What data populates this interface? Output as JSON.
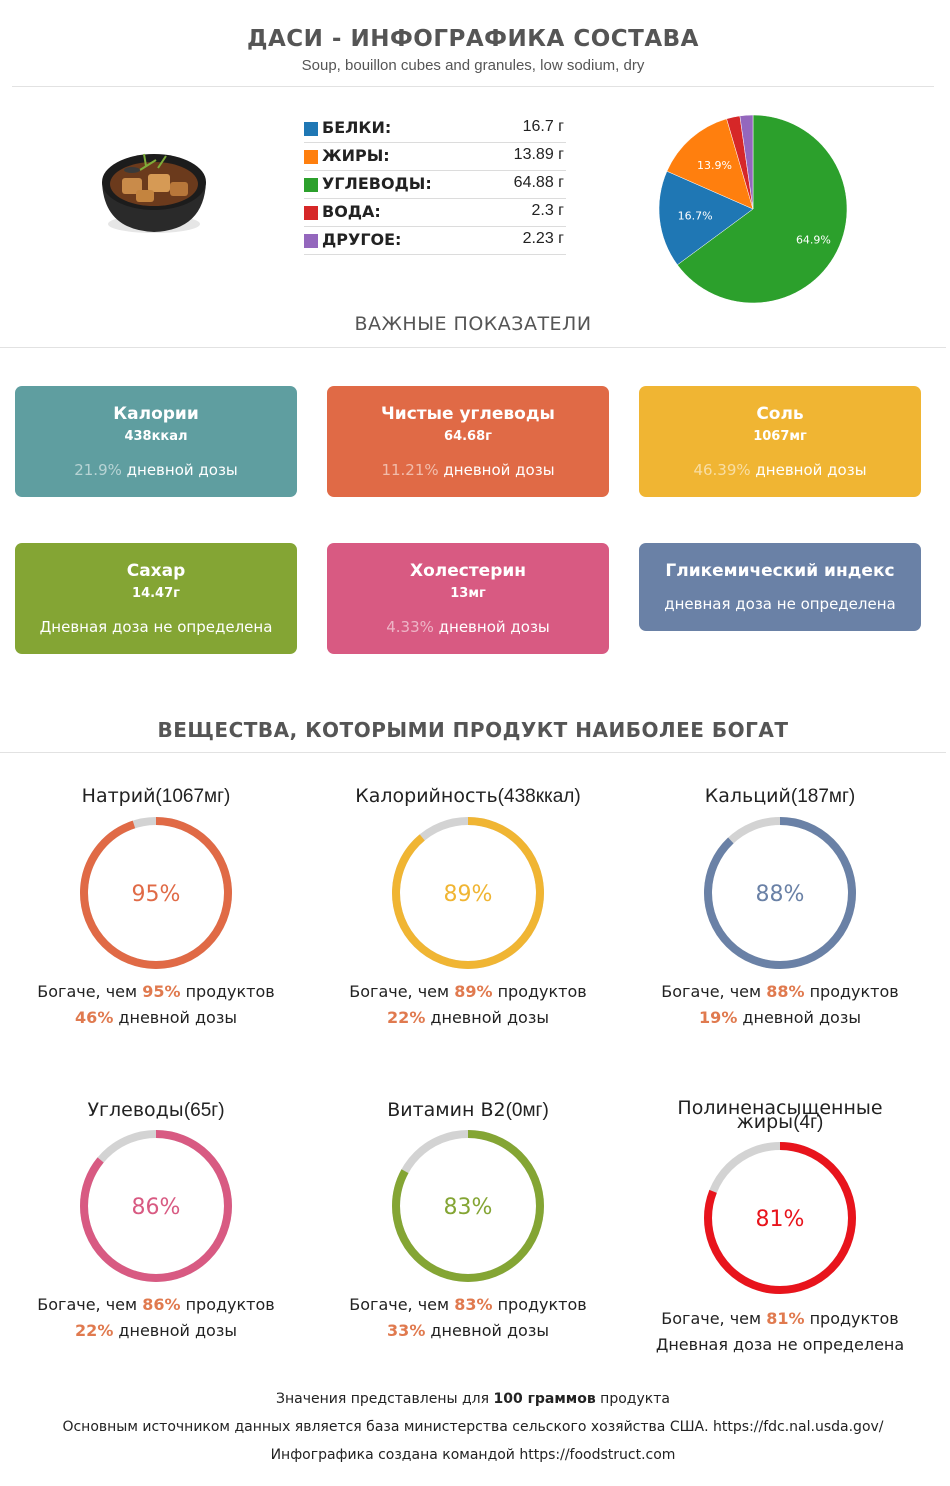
{
  "header": {
    "title": "ДАСИ - ИНФОГРАФИКА СОСТАВА",
    "subtitle": "Soup, bouillon cubes and granules, low sodium, dry",
    "image_icon": "soup-bowl-photo"
  },
  "macros": [
    {
      "label": "БЕЛКИ:",
      "value": "16.7 г",
      "color": "#1f77b4"
    },
    {
      "label": "ЖИРЫ:",
      "value": "13.89 г",
      "color": "#ff7f0e"
    },
    {
      "label": "УГЛЕВОДЫ:",
      "value": "64.88 г",
      "color": "#2ca02c"
    },
    {
      "label": "ВОДА:",
      "value": "2.3 г",
      "color": "#d62728"
    },
    {
      "label": "ДРУГОЕ:",
      "value": "2.23 г",
      "color": "#9467bd"
    }
  ],
  "chart_data": {
    "type": "pie",
    "labels": [
      "Белки",
      "Жиры",
      "Углеводы",
      "Вода",
      "Другое"
    ],
    "values": [
      16.7,
      13.89,
      64.88,
      2.3,
      2.23
    ],
    "slice_labels": [
      "16.7%",
      "13.9%",
      "64.9%",
      "",
      ""
    ],
    "colors": [
      "#1f77b4",
      "#ff7f0e",
      "#2ca02c",
      "#d62728",
      "#9467bd"
    ]
  },
  "important": {
    "title": "ВАЖНЫЕ ПОКАЗАТЕЛИ",
    "cards": [
      {
        "title": "Калории",
        "value": "438ккал",
        "pct": "21.9%",
        "desc": " дневной дозы",
        "color": "#5f9ea0"
      },
      {
        "title": "Чистые углеводы",
        "value": "64.68г",
        "pct": "11.21%",
        "desc": " дневной дозы",
        "color": "#e06a46"
      },
      {
        "title": "Соль",
        "value": "1067мг",
        "pct": "46.39%",
        "desc": " дневной дозы",
        "color": "#f0b533"
      },
      {
        "title": "Сахар",
        "value": "14.47г",
        "pct": "",
        "desc": "Дневная доза не определена",
        "color": "#84a534"
      },
      {
        "title": "Холестерин",
        "value": "13мг",
        "pct": "4.33%",
        "desc": " дневной дозы",
        "color": "#d85a82"
      },
      {
        "title": "Гликемический индекс",
        "value": "",
        "pct": "",
        "desc": "дневная доза не определена",
        "color": "#6a81a6"
      }
    ]
  },
  "rich": {
    "title": "ВЕЩЕСТВА, КОТОРЫМИ ПРОДУКТ НАИБОЛЕЕ БОГАТ",
    "richer_prefix": "Богаче, чем ",
    "richer_suffix": " продуктов",
    "daily_suffix": " дневной дозы",
    "items": [
      {
        "name": "Натрий",
        "amount": "(1067мг)",
        "percent": 95,
        "percent_label": "95%",
        "daily": "46%",
        "color": "#e06a46"
      },
      {
        "name": "Калорийность",
        "amount": "(438ккал)",
        "percent": 89,
        "percent_label": "89%",
        "daily": "22%",
        "color": "#f0b533"
      },
      {
        "name": "Кальций",
        "amount": "(187мг)",
        "percent": 88,
        "percent_label": "88%",
        "daily": "19%",
        "color": "#6a81a6"
      },
      {
        "name": "Углеводы",
        "amount": "(65г)",
        "percent": 86,
        "percent_label": "86%",
        "daily": "22%",
        "color": "#d85a82"
      },
      {
        "name": "Витамин B2",
        "amount": "(0мг)",
        "percent": 83,
        "percent_label": "83%",
        "daily": "33%",
        "color": "#84a534"
      },
      {
        "name": "Полиненасыщенные жиры",
        "amount": "(4г)",
        "percent": 81,
        "percent_label": "81%",
        "daily": "",
        "daily_undefined": "Дневная доза не определена",
        "color": "#e8141c"
      }
    ]
  },
  "footer": {
    "line1_a": "Значения представлены для ",
    "line1_b": "100 граммов",
    "line1_c": " продукта",
    "line2": "Основным источником данных является база министерства сельского хозяйства США. https://fdc.nal.usda.gov/",
    "line3": "Инфографика создана командой https://foodstruct.com"
  }
}
